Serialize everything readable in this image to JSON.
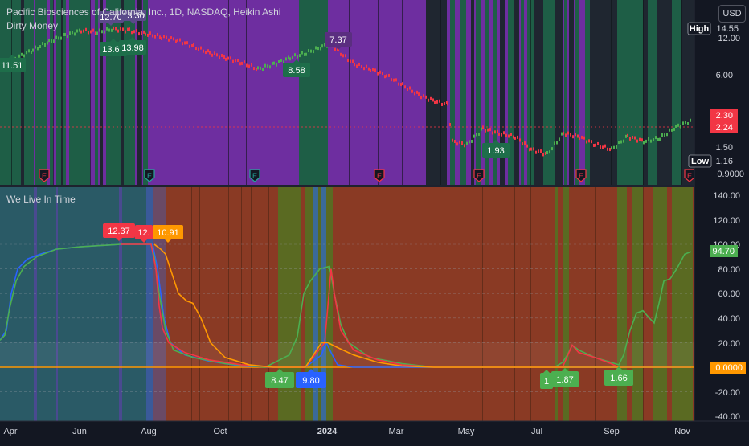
{
  "legend": {
    "symbol_line": "Pacific Biosciences of California, Inc., 1D, NASDAQ, Heikin Ashi",
    "indicator_1": "Dirty Money",
    "indicator_2": "We Live In Time"
  },
  "currency_button": "USD",
  "price_axis": {
    "ticks": [
      "12.00",
      "6.00",
      "1.50",
      "0.9000"
    ],
    "high_label": "High",
    "high_value": "14.55",
    "low_label": "Low",
    "low_value": "1.16",
    "current_1": "2.30",
    "current_2": "2.24"
  },
  "osc_axis": {
    "ticks": [
      "140.00",
      "120.00",
      "100.00",
      "80.00",
      "60.00",
      "40.00",
      "20.00",
      "-20.00",
      "-40.00"
    ],
    "green_value": "94.70",
    "orange_value": "0.0000"
  },
  "time_axis": [
    "Apr",
    "Jun",
    "Aug",
    "Oct",
    "2024",
    "Mar",
    "May",
    "Jul",
    "Sep",
    "Nov"
  ],
  "earnings_marker": "E",
  "price_labels": [
    "11.51",
    "12.70",
    "13.30",
    "13.60",
    "13.98",
    "8.58",
    "7.37",
    "1.93"
  ],
  "osc_labels": [
    "12.37",
    "12.",
    "10.91",
    "8.47",
    "9.80",
    "1",
    "1.87",
    "1.66"
  ],
  "colors": {
    "background": "#131722",
    "bull_band": "#1e5e46",
    "bear_band": "#6e2ea0",
    "green": "#4caf50",
    "red": "#f23645",
    "orange": "#ff9800",
    "blue": "#2962ff",
    "osc_bear_bg": "#8a3a24",
    "osc_teal_bg": "#2a5a66",
    "osc_olive_bg": "#5a6a22"
  }
}
